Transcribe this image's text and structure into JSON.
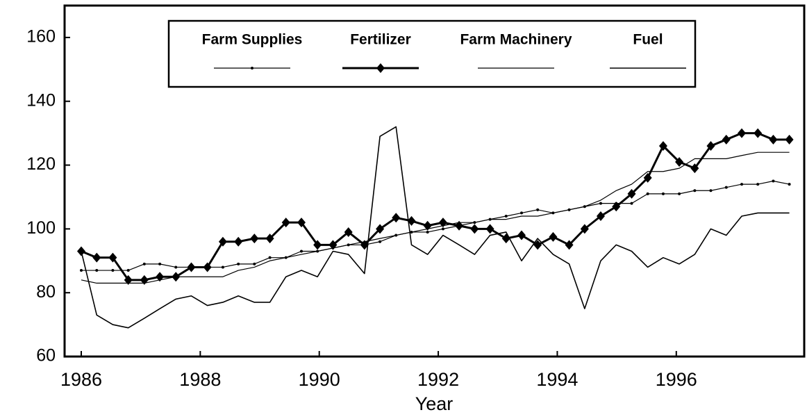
{
  "chart_data": {
    "type": "line",
    "x_label": "Year",
    "xlim": [
      1985.72,
      1998.15
    ],
    "xticks": [
      1986,
      1988,
      1990,
      1992,
      1994,
      1996
    ],
    "ylim": [
      60,
      170
    ],
    "yticks": [
      60,
      80,
      100,
      120,
      140,
      160
    ],
    "x": [
      1986.0,
      1986.26,
      1986.53,
      1986.79,
      1987.06,
      1987.32,
      1987.59,
      1987.85,
      1988.12,
      1988.38,
      1988.64,
      1988.91,
      1989.17,
      1989.44,
      1989.7,
      1989.97,
      1990.23,
      1990.49,
      1990.76,
      1991.02,
      1991.29,
      1991.55,
      1991.82,
      1992.08,
      1992.35,
      1992.61,
      1992.87,
      1993.14,
      1993.4,
      1993.67,
      1993.93,
      1994.2,
      1994.46,
      1994.73,
      1994.99,
      1995.25,
      1995.52,
      1995.78,
      1996.05,
      1996.31,
      1996.58,
      1996.84,
      1997.1,
      1997.37,
      1997.63,
      1997.9
    ],
    "series": [
      {
        "name": "Farm Supplies",
        "color": "#000000",
        "line_width": 1.2,
        "marker": "dot",
        "values": [
          87,
          87,
          87,
          87,
          89,
          89,
          88,
          88,
          88,
          88,
          89,
          89,
          91,
          91,
          93,
          93,
          94,
          95,
          95,
          96,
          98,
          99,
          99,
          100,
          101,
          102,
          103,
          104,
          105,
          106,
          105,
          106,
          107,
          108,
          108,
          108,
          111,
          111,
          111,
          112,
          112,
          113,
          114,
          114,
          115,
          114
        ]
      },
      {
        "name": "Fertilizer",
        "color": "#000000",
        "line_width": 3,
        "marker": "diamond",
        "values": [
          93,
          91,
          91,
          84,
          84,
          85,
          85,
          88,
          88,
          96,
          96,
          97,
          97,
          102,
          102,
          95,
          95,
          99,
          95,
          100,
          103.5,
          102.5,
          101,
          102,
          101,
          100,
          100,
          97,
          98,
          95,
          97.5,
          95,
          100,
          104,
          107,
          111,
          116,
          126,
          121,
          119,
          126,
          128,
          130,
          130,
          128,
          128
        ]
      },
      {
        "name": "Farm Machinery",
        "color": "#000000",
        "line_width": 1.2,
        "marker": "none",
        "values": [
          84,
          83,
          83,
          83,
          83,
          84,
          85,
          85,
          85,
          85,
          87,
          88,
          90,
          91,
          92,
          93,
          94,
          95,
          96,
          97,
          98,
          99,
          100,
          101,
          102,
          102,
          103,
          103,
          104,
          104,
          105,
          106,
          107,
          109,
          112,
          114,
          118,
          118,
          119,
          122,
          122,
          122,
          123,
          124,
          124,
          124
        ]
      },
      {
        "name": "Fuel",
        "color": "#000000",
        "line_width": 1.6,
        "marker": "none",
        "values": [
          93,
          73,
          70,
          69,
          72,
          75,
          78,
          79,
          76,
          77,
          79,
          77,
          77,
          85,
          87,
          85,
          93,
          92,
          86,
          129,
          132,
          95,
          92,
          98,
          95,
          92,
          98,
          99,
          90,
          97,
          92,
          89,
          75,
          90,
          95,
          93,
          88,
          91,
          89,
          92,
          100,
          98,
          104,
          105,
          105,
          105
        ]
      }
    ]
  }
}
